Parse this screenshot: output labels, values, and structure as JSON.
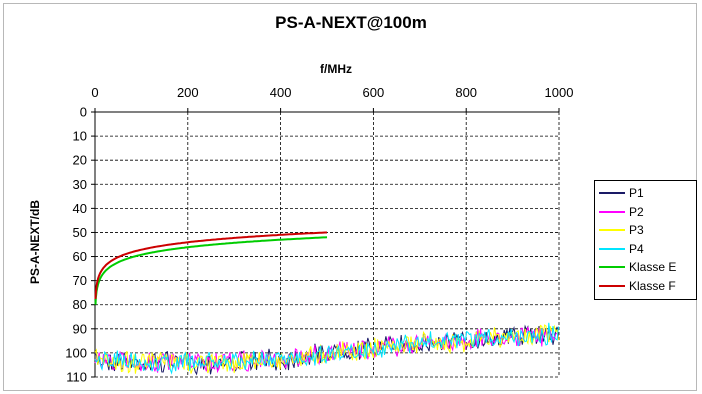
{
  "chart_data": {
    "type": "line",
    "title": "PS-A-NEXT@100m",
    "xlabel": "f/MHz",
    "ylabel": "PS-A-NEXT/dB",
    "xlim": [
      0,
      1000
    ],
    "ylim": [
      0,
      110
    ],
    "y_inverted": true,
    "x_axis_position": "top",
    "x_ticks": [
      0,
      200,
      400,
      600,
      800,
      1000
    ],
    "y_ticks": [
      0,
      10,
      20,
      30,
      40,
      50,
      60,
      70,
      80,
      90,
      100,
      110
    ],
    "grid": "dashed",
    "legend_position": "right",
    "series": [
      {
        "name": "P1",
        "color": "#1a1a66",
        "kind": "noise",
        "x": [
          0,
          100,
          200,
          300,
          400,
          500,
          600,
          700,
          800,
          900,
          1000
        ],
        "y": [
          103,
          104,
          104,
          104,
          103,
          100,
          98,
          96,
          95,
          93,
          92
        ]
      },
      {
        "name": "P2",
        "color": "#ff00ff",
        "kind": "noise",
        "x": [
          0,
          100,
          200,
          300,
          400,
          500,
          600,
          700,
          800,
          900,
          1000
        ],
        "y": [
          103,
          104,
          104,
          104,
          103,
          100,
          98,
          96,
          95,
          93,
          92
        ]
      },
      {
        "name": "P3",
        "color": "#ffff00",
        "kind": "noise",
        "x": [
          0,
          100,
          200,
          300,
          400,
          500,
          600,
          700,
          800,
          900,
          1000
        ],
        "y": [
          103,
          104,
          104,
          104,
          103,
          100,
          98,
          96,
          95,
          93,
          92
        ]
      },
      {
        "name": "P4",
        "color": "#00e5ff",
        "kind": "noise",
        "x": [
          0,
          100,
          200,
          300,
          400,
          500,
          600,
          700,
          800,
          900,
          1000
        ],
        "y": [
          103,
          104,
          104,
          104,
          103,
          100,
          98,
          96,
          95,
          93,
          92
        ]
      },
      {
        "name": "Klasse E",
        "color": "#00cc00",
        "kind": "smooth",
        "x": [
          1,
          4,
          10,
          16,
          20,
          31.25,
          62.5,
          100,
          200,
          250,
          300,
          400,
          500
        ],
        "y": [
          80,
          71.9,
          66.3,
          63.4,
          61.9,
          58.9,
          54.5,
          61.4,
          56.6,
          55.1,
          53.8,
          52.0,
          50.5
        ]
      },
      {
        "name": "Klasse F",
        "color": "#cc0000",
        "kind": "smooth",
        "x": [
          1,
          4,
          10,
          16,
          20,
          31.25,
          62.5,
          100,
          200,
          250,
          300,
          400,
          500
        ],
        "y": [
          78,
          70.0,
          65.0,
          62.5,
          61.0,
          58.0,
          53.5,
          59.3,
          54.8,
          53.3,
          52.1,
          50.3,
          49.0
        ]
      }
    ]
  }
}
